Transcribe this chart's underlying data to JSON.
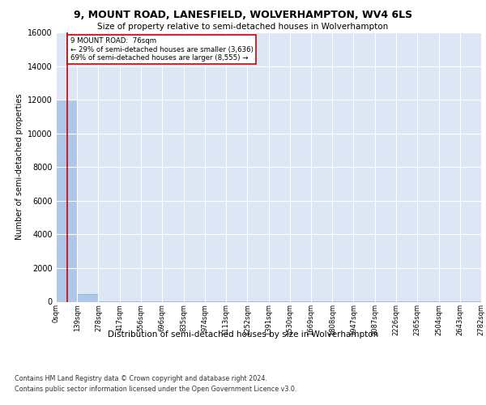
{
  "title": "9, MOUNT ROAD, LANESFIELD, WOLVERHAMPTON, WV4 6LS",
  "subtitle": "Size of property relative to semi-detached houses in Wolverhampton",
  "xlabel": "Distribution of semi-detached houses by size in Wolverhampton",
  "ylabel": "Number of semi-detached properties",
  "property_size": 76,
  "pct_smaller": 29,
  "count_smaller": 3636,
  "pct_larger": 69,
  "count_larger": 8555,
  "bin_edges": [
    0,
    139,
    278,
    417,
    556,
    696,
    835,
    974,
    1113,
    1252,
    1391,
    1530,
    1669,
    1808,
    1947,
    2087,
    2226,
    2365,
    2504,
    2643,
    2782
  ],
  "bin_labels": [
    "0sqm",
    "139sqm",
    "278sqm",
    "417sqm",
    "556sqm",
    "696sqm",
    "835sqm",
    "974sqm",
    "1113sqm",
    "1252sqm",
    "1391sqm",
    "1530sqm",
    "1669sqm",
    "1808sqm",
    "1947sqm",
    "2087sqm",
    "2226sqm",
    "2365sqm",
    "2504sqm",
    "2643sqm",
    "2782sqm"
  ],
  "bar_heights": [
    12000,
    450,
    30,
    15,
    10,
    8,
    5,
    3,
    3,
    2,
    2,
    2,
    1,
    1,
    1,
    1,
    1,
    1,
    1,
    1
  ],
  "bar_color": "#aec6e8",
  "bar_edge_color": "#7ab0d4",
  "property_line_color": "#cc0000",
  "annotation_box_color": "#cc0000",
  "background_color": "#dce6f5",
  "grid_color": "#c5d0e0",
  "ylim": [
    0,
    16000
  ],
  "yticks": [
    0,
    2000,
    4000,
    6000,
    8000,
    10000,
    12000,
    14000,
    16000
  ],
  "footer_line1": "Contains HM Land Registry data © Crown copyright and database right 2024.",
  "footer_line2": "Contains public sector information licensed under the Open Government Licence v3.0."
}
